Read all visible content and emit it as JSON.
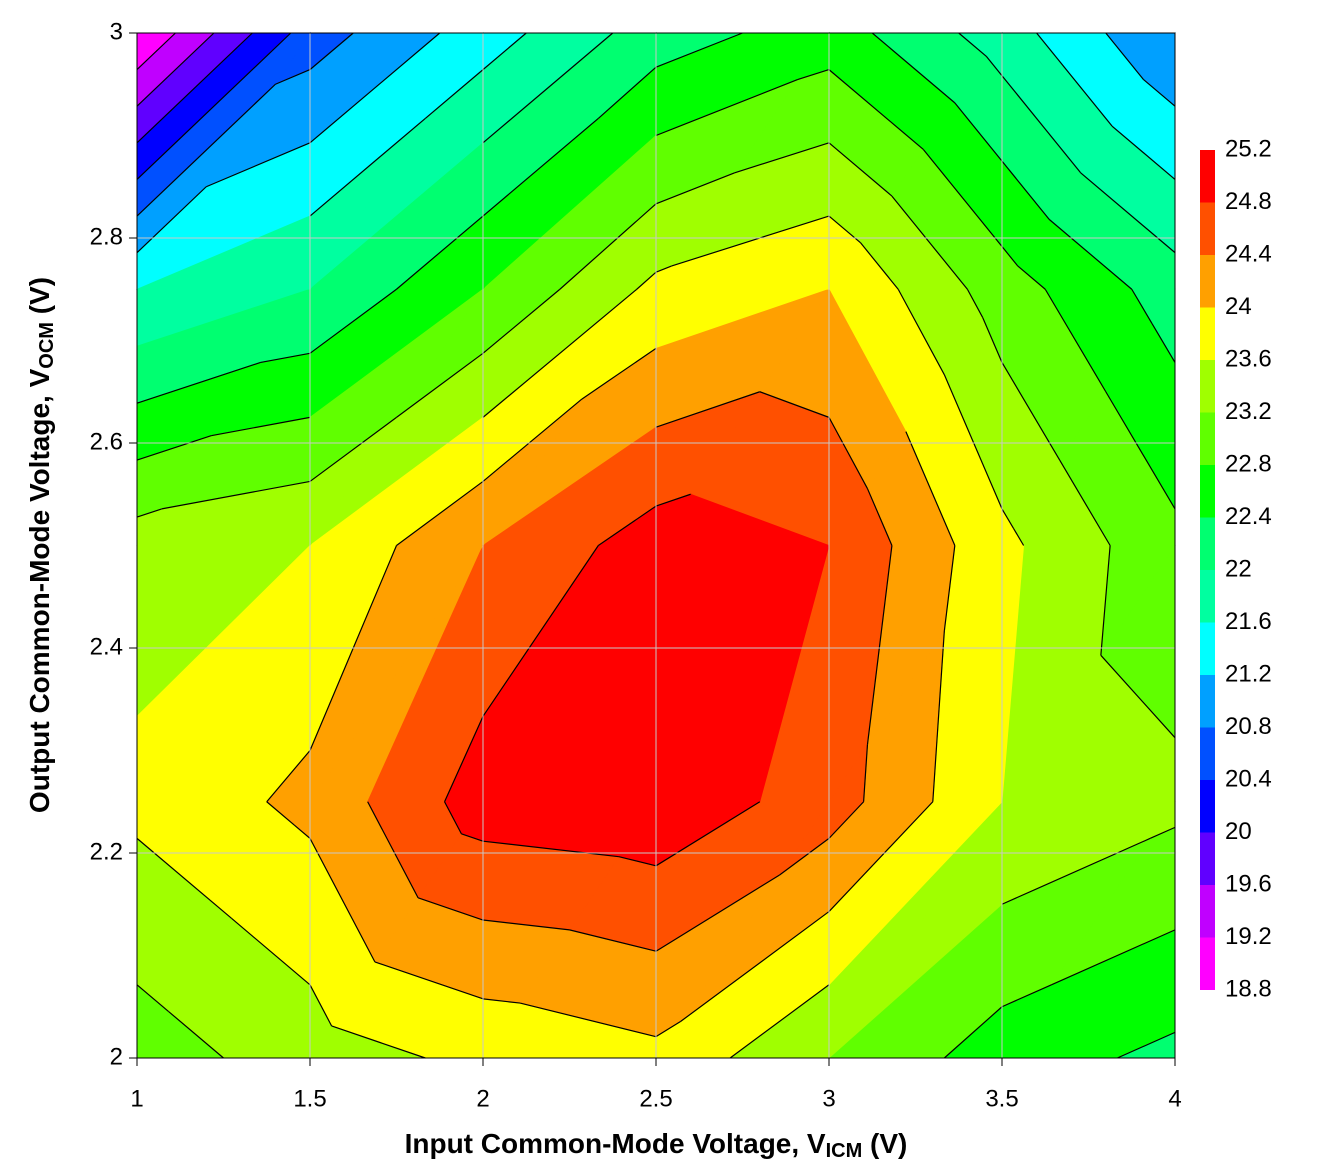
{
  "chart_data": {
    "type": "contour",
    "xlabel": [
      "Input Common-Mode Voltage, V",
      "ICM",
      " (V)"
    ],
    "ylabel": [
      "Output Common-Mode Voltage, V",
      "OCM",
      " (V)"
    ],
    "x": [
      1,
      1.5,
      2,
      2.5,
      3,
      3.5,
      4
    ],
    "y": [
      2,
      2.25,
      2.5,
      2.75,
      3
    ],
    "z": [
      [
        23.0,
        23.4,
        23.7,
        23.9,
        23.2,
        22.6,
        22.3
      ],
      [
        23.7,
        24.1,
        25.0,
        25.1,
        24.6,
        23.6,
        23.3
      ],
      [
        23.4,
        23.6,
        24.4,
        25.0,
        24.8,
        23.7,
        22.9
      ],
      [
        21.6,
        22.0,
        22.8,
        23.7,
        24.0,
        23.0,
        22.2
      ],
      [
        18.8,
        20.6,
        21.4,
        22.2,
        22.6,
        21.8,
        20.8
      ]
    ],
    "levels": [
      18.8,
      19.2,
      19.6,
      20,
      20.4,
      20.8,
      21.2,
      21.6,
      22,
      22.4,
      22.8,
      23.2,
      23.6,
      24,
      24.4,
      24.8,
      25.2
    ],
    "colors": [
      "#ff00ff",
      "#c000ff",
      "#6000ff",
      "#0000ff",
      "#0050ff",
      "#00a0ff",
      "#00ffff",
      "#00ffa0",
      "#00ff70",
      "#00ff00",
      "#60ff00",
      "#a0ff00",
      "#ffff00",
      "#ffa000",
      "#ff5000",
      "#ff0000"
    ],
    "xlim": [
      1,
      4
    ],
    "xticks": [
      1,
      1.5,
      2,
      2.5,
      3,
      3.5,
      4
    ],
    "ylim": [
      2,
      3
    ],
    "yticks": [
      2,
      2.2,
      2.4,
      2.6,
      2.8,
      3
    ],
    "grid": true
  }
}
